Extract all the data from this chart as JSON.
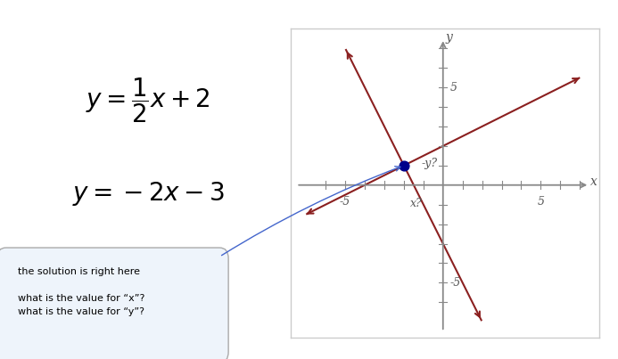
{
  "intersection": [
    -2,
    1
  ],
  "xlim": [
    -7,
    7
  ],
  "ylim": [
    -7,
    7
  ],
  "xtick_labels": [
    -5,
    5
  ],
  "ytick_labels": [
    -5,
    5
  ],
  "line1_color": "#8B2020",
  "line2_color": "#8B2020",
  "line1_slope": 0.5,
  "line1_intercept": 2,
  "line2_slope": -2,
  "line2_intercept": -3,
  "dot_color": "#00008B",
  "dot_size": 60,
  "callout_text_line1": "the solution is right here",
  "callout_text_line2": "what is the value for “x”?\nwhat is the value for “y”?",
  "xlabel_label": "x",
  "ylabel_label": "y",
  "x_q_label": "x?",
  "y_q_label": "-y?",
  "background_color": "#ffffff",
  "plot_bg": "#ffffff",
  "border_color": "#cccccc",
  "axis_color": "#888888",
  "tick_color": "#888888",
  "label_color": "#555555",
  "blue_line_color": "#4466cc"
}
